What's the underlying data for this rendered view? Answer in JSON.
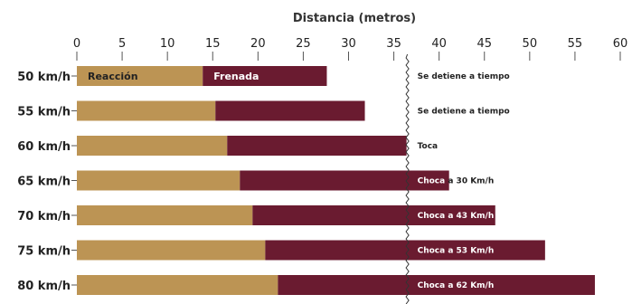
{
  "colors": {
    "reaction": "#BC9454",
    "braking": "#6A1B30",
    "text": "#222222",
    "axis": "#555555",
    "light_text": "#ffffff"
  },
  "chart_data": {
    "type": "bar",
    "orientation": "horizontal",
    "stacked": true,
    "title": "Distancia (metros)",
    "xlim": [
      0,
      60
    ],
    "xticks": [
      0,
      5,
      10,
      15,
      20,
      25,
      30,
      35,
      40,
      45,
      50,
      55,
      60
    ],
    "categories": [
      "50 km/h",
      "55 km/h",
      "60 km/h",
      "65 km/h",
      "70 km/h",
      "75 km/h",
      "80 km/h"
    ],
    "series": [
      {
        "name": "Reacción",
        "values": [
          13.9,
          15.3,
          16.6,
          18.0,
          19.4,
          20.8,
          22.2
        ]
      },
      {
        "name": "Frenada",
        "values": [
          13.7,
          16.5,
          19.8,
          23.1,
          26.8,
          30.9,
          35.0
        ]
      }
    ],
    "obstacle_x": 36.5,
    "annotations": [
      "Se detiene a tiempo",
      "Se detiene a tiempo",
      "Toca",
      "Choca a 30 Km/h",
      "Choca a 43 Km/h",
      "Choca a 53 Km/h",
      "Choca a 62 Km/h"
    ],
    "grid": false,
    "legend": "inside first bar"
  }
}
